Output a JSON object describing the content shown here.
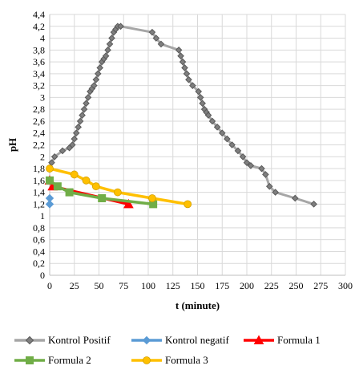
{
  "chart_data": {
    "type": "line",
    "xlabel": "t (minute)",
    "ylabel": "pH",
    "xlim": [
      0,
      300
    ],
    "ylim": [
      0,
      4.4
    ],
    "x_ticks": [
      "0",
      "25",
      "50",
      "75",
      "100",
      "125",
      "150",
      "175",
      "200",
      "225",
      "250",
      "275",
      "300"
    ],
    "y_ticks": [
      "0",
      "0,2",
      "0,4",
      "0,6",
      "0,8",
      "1",
      "1,2",
      "1,4",
      "1,6",
      "1,8",
      "2",
      "2,2",
      "2,4",
      "2,6",
      "2,8",
      "3",
      "3,2",
      "3,4",
      "3,6",
      "3,8",
      "4",
      "4,2",
      "4,4"
    ],
    "grid": true,
    "legend_position": "bottom",
    "series": [
      {
        "name": "Kontrol Positif",
        "color": "#595959",
        "marker": "diamond",
        "x": [
          0,
          2,
          5,
          13,
          20,
          23,
          25,
          27,
          29,
          31,
          33,
          35,
          37,
          39,
          41,
          43,
          45,
          47,
          49,
          51,
          53,
          55,
          57,
          59,
          61,
          63,
          65,
          67,
          69,
          72,
          104,
          108,
          113,
          131,
          133,
          135,
          137,
          139,
          141,
          145,
          151,
          153,
          155,
          157,
          159,
          161,
          165,
          170,
          175,
          180,
          185,
          191,
          196,
          200,
          204,
          215,
          219,
          223,
          229,
          249,
          268
        ],
        "y": [
          1.8,
          1.9,
          2.0,
          2.1,
          2.15,
          2.2,
          2.3,
          2.4,
          2.5,
          2.6,
          2.7,
          2.8,
          2.9,
          3.0,
          3.1,
          3.15,
          3.2,
          3.3,
          3.4,
          3.5,
          3.6,
          3.65,
          3.7,
          3.8,
          3.9,
          4.0,
          4.1,
          4.15,
          4.2,
          4.2,
          4.1,
          4.0,
          3.9,
          3.8,
          3.7,
          3.6,
          3.5,
          3.4,
          3.3,
          3.2,
          3.1,
          3.0,
          2.9,
          2.8,
          2.75,
          2.7,
          2.6,
          2.5,
          2.4,
          2.3,
          2.2,
          2.1,
          2.0,
          1.9,
          1.85,
          1.8,
          1.7,
          1.5,
          1.4,
          1.3,
          1.2
        ]
      },
      {
        "name": "Kontrol negatif",
        "color": "#5b9bd5",
        "marker": "diamond",
        "x": [
          0,
          0
        ],
        "y": [
          1.3,
          1.2
        ]
      },
      {
        "name": "Formula 1",
        "color": "#ff0000",
        "marker": "triangle",
        "x": [
          0,
          3,
          80
        ],
        "y": [
          1.6,
          1.5,
          1.2
        ]
      },
      {
        "name": "Formula 2",
        "color": "#70ad47",
        "marker": "square",
        "x": [
          0,
          8,
          20,
          53,
          105
        ],
        "y": [
          1.6,
          1.5,
          1.4,
          1.3,
          1.2
        ]
      },
      {
        "name": "Formula 3",
        "color": "#ffc000",
        "marker": "circle",
        "x": [
          0,
          25,
          37,
          47,
          69,
          104,
          140
        ],
        "y": [
          1.8,
          1.7,
          1.6,
          1.5,
          1.4,
          1.3,
          1.2
        ]
      }
    ]
  }
}
